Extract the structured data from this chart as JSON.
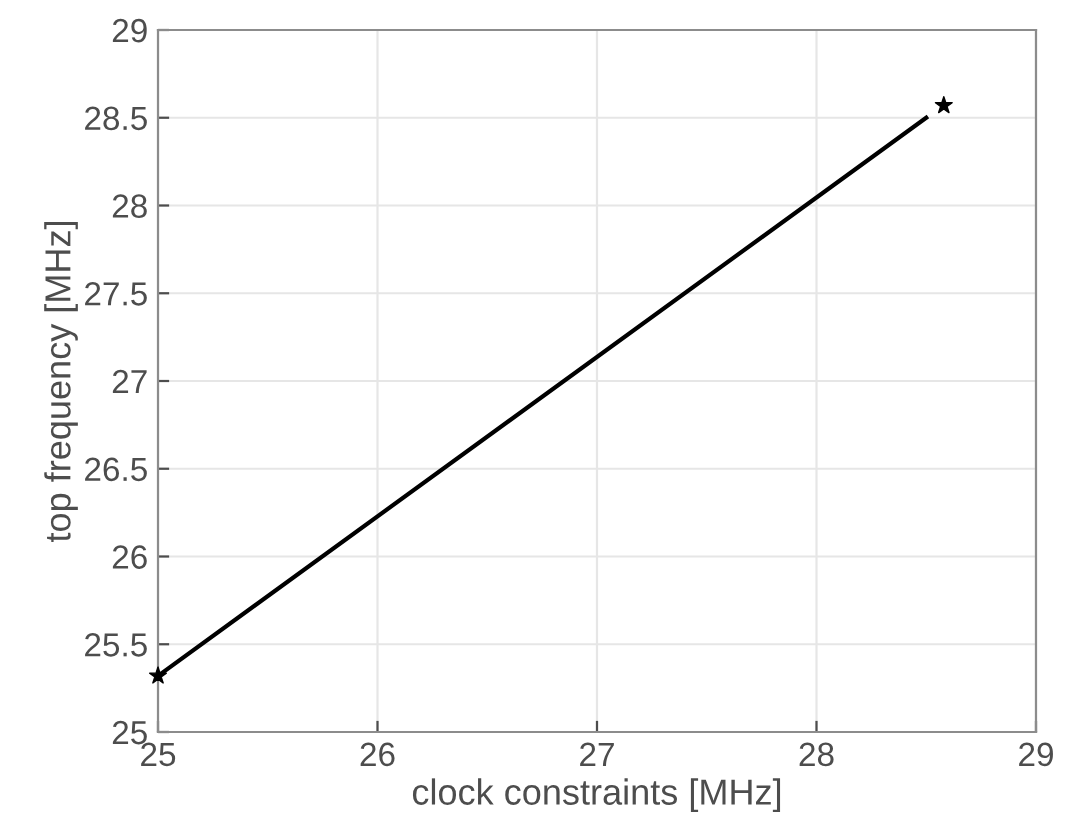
{
  "chart_data": {
    "type": "line",
    "xlabel": "clock constraints [MHz]",
    "ylabel": "top frequency [MHz]",
    "series": [
      {
        "color": "#000000",
        "x": [
          25,
          28.5
        ],
        "values": [
          25.32,
          28.5
        ],
        "marker": "none",
        "line_style": "solid"
      },
      {
        "type": "scatter",
        "color": "#000000",
        "x": [
          25,
          28.58
        ],
        "values": [
          25.32,
          28.57
        ],
        "marker": "star"
      }
    ],
    "xlim": [
      25,
      29
    ],
    "ylim": [
      25,
      29
    ],
    "xticks": [
      25,
      26,
      27,
      28,
      29
    ],
    "yticks": [
      25,
      25.5,
      26,
      26.5,
      27,
      27.5,
      28,
      28.5,
      29
    ],
    "grid": true
  }
}
